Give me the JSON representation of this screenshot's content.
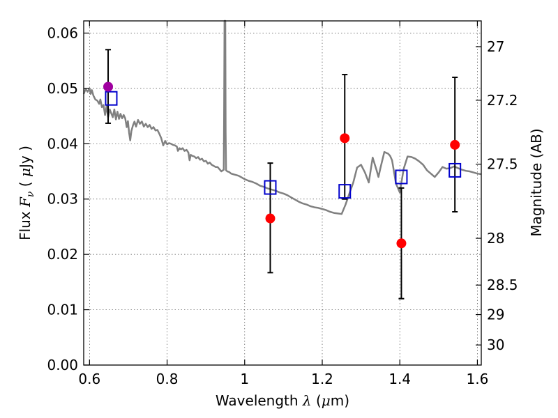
{
  "chart_data": {
    "type": "scatter",
    "xlabel_parts": [
      "Wavelength ",
      "λ",
      " (",
      "μ",
      "m)"
    ],
    "ylabel_parts": [
      "Flux ",
      "F",
      "ν",
      " ( ",
      "μ",
      "Jy )"
    ],
    "y2label": "Magnitude (AB)",
    "xlim": [
      0.585,
      1.61
    ],
    "ylim": [
      0.0,
      0.0622
    ],
    "grid": true,
    "x_ticks": [
      {
        "value": 0.6,
        "label": "0.6"
      },
      {
        "value": 0.8,
        "label": "0.8"
      },
      {
        "value": 1.0,
        "label": "1"
      },
      {
        "value": 1.2,
        "label": "1.2"
      },
      {
        "value": 1.4,
        "label": "1.4"
      },
      {
        "value": 1.6,
        "label": "1.6"
      }
    ],
    "y_ticks": [
      {
        "value": 0.0,
        "label": "0.00"
      },
      {
        "value": 0.01,
        "label": "0.01"
      },
      {
        "value": 0.02,
        "label": "0.02"
      },
      {
        "value": 0.03,
        "label": "0.03"
      },
      {
        "value": 0.04,
        "label": "0.04"
      },
      {
        "value": 0.05,
        "label": "0.05"
      },
      {
        "value": 0.06,
        "label": "0.06"
      }
    ],
    "y2_ticks": [
      {
        "magnitude": 27,
        "label": "27"
      },
      {
        "magnitude": 27.2,
        "label": "27.2"
      },
      {
        "magnitude": 27.5,
        "label": "27.5"
      },
      {
        "magnitude": 28,
        "label": "28"
      },
      {
        "magnitude": 28.5,
        "label": "28.5"
      },
      {
        "magnitude": 29,
        "label": "29"
      },
      {
        "magnitude": 30,
        "label": "30"
      }
    ],
    "colors": {
      "spectrum": "#808080",
      "observed": "#ff0000",
      "observed_first": "#a000a0",
      "model_box": "#0000cc",
      "errorbar": "#000000"
    },
    "series": [
      {
        "kind": "line",
        "points": [
          [
            0.585,
            0.049
          ],
          [
            0.59,
            0.0499
          ],
          [
            0.595,
            0.0494
          ],
          [
            0.6,
            0.05
          ],
          [
            0.603,
            0.049
          ],
          [
            0.606,
            0.0497
          ],
          [
            0.61,
            0.0487
          ],
          [
            0.615,
            0.048
          ],
          [
            0.62,
            0.0478
          ],
          [
            0.625,
            0.0472
          ],
          [
            0.628,
            0.048
          ],
          [
            0.632,
            0.0466
          ],
          [
            0.636,
            0.047
          ],
          [
            0.64,
            0.0452
          ],
          [
            0.644,
            0.0468
          ],
          [
            0.648,
            0.0448
          ],
          [
            0.652,
            0.0462
          ],
          [
            0.656,
            0.0455
          ],
          [
            0.66,
            0.0448
          ],
          [
            0.664,
            0.0462
          ],
          [
            0.668,
            0.0444
          ],
          [
            0.672,
            0.0458
          ],
          [
            0.676,
            0.0445
          ],
          [
            0.68,
            0.0454
          ],
          [
            0.684,
            0.0446
          ],
          [
            0.688,
            0.0452
          ],
          [
            0.692,
            0.0446
          ],
          [
            0.696,
            0.043
          ],
          [
            0.699,
            0.0441
          ],
          [
            0.702,
            0.042
          ],
          [
            0.705,
            0.0406
          ],
          [
            0.708,
            0.0423
          ],
          [
            0.712,
            0.0433
          ],
          [
            0.716,
            0.044
          ],
          [
            0.72,
            0.0431
          ],
          [
            0.725,
            0.0443
          ],
          [
            0.73,
            0.0436
          ],
          [
            0.735,
            0.044
          ],
          [
            0.74,
            0.0431
          ],
          [
            0.745,
            0.0436
          ],
          [
            0.75,
            0.043
          ],
          [
            0.755,
            0.0434
          ],
          [
            0.76,
            0.0427
          ],
          [
            0.765,
            0.043
          ],
          [
            0.77,
            0.0424
          ],
          [
            0.775,
            0.0425
          ],
          [
            0.78,
            0.0418
          ],
          [
            0.785,
            0.041
          ],
          [
            0.79,
            0.0397
          ],
          [
            0.795,
            0.0405
          ],
          [
            0.8,
            0.0399
          ],
          [
            0.805,
            0.0401
          ],
          [
            0.81,
            0.04
          ],
          [
            0.815,
            0.0398
          ],
          [
            0.82,
            0.0397
          ],
          [
            0.825,
            0.0395
          ],
          [
            0.828,
            0.0387
          ],
          [
            0.832,
            0.0392
          ],
          [
            0.836,
            0.039
          ],
          [
            0.84,
            0.0392
          ],
          [
            0.845,
            0.0387
          ],
          [
            0.85,
            0.0389
          ],
          [
            0.855,
            0.0384
          ],
          [
            0.858,
            0.037
          ],
          [
            0.861,
            0.038
          ],
          [
            0.865,
            0.0378
          ],
          [
            0.87,
            0.0377
          ],
          [
            0.875,
            0.0374
          ],
          [
            0.88,
            0.0376
          ],
          [
            0.885,
            0.0371
          ],
          [
            0.89,
            0.0373
          ],
          [
            0.895,
            0.0368
          ],
          [
            0.9,
            0.0369
          ],
          [
            0.905,
            0.0364
          ],
          [
            0.91,
            0.0366
          ],
          [
            0.915,
            0.0362
          ],
          [
            0.92,
            0.036
          ],
          [
            0.925,
            0.0358
          ],
          [
            0.93,
            0.0358
          ],
          [
            0.935,
            0.0354
          ],
          [
            0.94,
            0.035
          ],
          [
            0.944,
            0.0352
          ],
          [
            0.946,
            0.0353
          ],
          [
            0.947,
            0.045
          ],
          [
            0.948,
            0.0622
          ],
          [
            0.95,
            0.0622
          ],
          [
            0.951,
            0.042
          ],
          [
            0.952,
            0.0352
          ],
          [
            0.955,
            0.035
          ],
          [
            0.96,
            0.0349
          ],
          [
            0.965,
            0.0346
          ],
          [
            0.97,
            0.0345
          ],
          [
            0.975,
            0.0344
          ],
          [
            0.98,
            0.0343
          ],
          [
            0.985,
            0.0342
          ],
          [
            0.99,
            0.034
          ],
          [
            0.995,
            0.0338
          ],
          [
            1.0,
            0.0336
          ],
          [
            1.01,
            0.0333
          ],
          [
            1.02,
            0.0331
          ],
          [
            1.03,
            0.0328
          ],
          [
            1.04,
            0.0324
          ],
          [
            1.05,
            0.0322
          ],
          [
            1.06,
            0.0319
          ],
          [
            1.07,
            0.0317
          ],
          [
            1.08,
            0.0315
          ],
          [
            1.09,
            0.0312
          ],
          [
            1.1,
            0.031
          ],
          [
            1.11,
            0.0307
          ],
          [
            1.12,
            0.0303
          ],
          [
            1.13,
            0.0299
          ],
          [
            1.14,
            0.0295
          ],
          [
            1.15,
            0.0292
          ],
          [
            1.16,
            0.029
          ],
          [
            1.17,
            0.0287
          ],
          [
            1.18,
            0.0285
          ],
          [
            1.19,
            0.0284
          ],
          [
            1.2,
            0.0282
          ],
          [
            1.21,
            0.028
          ],
          [
            1.22,
            0.0277
          ],
          [
            1.23,
            0.0275
          ],
          [
            1.24,
            0.0274
          ],
          [
            1.25,
            0.0273
          ],
          [
            1.26,
            0.029
          ],
          [
            1.27,
            0.031
          ],
          [
            1.28,
            0.033
          ],
          [
            1.29,
            0.0357
          ],
          [
            1.3,
            0.0362
          ],
          [
            1.31,
            0.0348
          ],
          [
            1.32,
            0.033
          ],
          [
            1.33,
            0.0375
          ],
          [
            1.34,
            0.0352
          ],
          [
            1.345,
            0.034
          ],
          [
            1.35,
            0.0356
          ],
          [
            1.36,
            0.0385
          ],
          [
            1.37,
            0.0382
          ],
          [
            1.375,
            0.0378
          ],
          [
            1.38,
            0.037
          ],
          [
            1.39,
            0.0328
          ],
          [
            1.4,
            0.0312
          ],
          [
            1.41,
            0.0355
          ],
          [
            1.42,
            0.0377
          ],
          [
            1.43,
            0.0376
          ],
          [
            1.44,
            0.0373
          ],
          [
            1.45,
            0.0368
          ],
          [
            1.46,
            0.0362
          ],
          [
            1.47,
            0.0352
          ],
          [
            1.48,
            0.0346
          ],
          [
            1.49,
            0.034
          ],
          [
            1.5,
            0.0348
          ],
          [
            1.51,
            0.0358
          ],
          [
            1.52,
            0.0355
          ],
          [
            1.53,
            0.0356
          ],
          [
            1.54,
            0.0359
          ],
          [
            1.55,
            0.0356
          ],
          [
            1.56,
            0.0353
          ],
          [
            1.57,
            0.0351
          ],
          [
            1.58,
            0.035
          ],
          [
            1.59,
            0.0348
          ],
          [
            1.6,
            0.0346
          ],
          [
            1.61,
            0.0345
          ]
        ]
      },
      {
        "kind": "points",
        "marker": "circle",
        "x": [
          0.648,
          1.066,
          1.258,
          1.404,
          1.542
        ],
        "y": [
          0.0503,
          0.0265,
          0.041,
          0.022,
          0.0398
        ],
        "yerr_low": [
          0.0437,
          0.0167,
          0.03,
          0.012,
          0.0277
        ],
        "yerr_high": [
          0.057,
          0.0365,
          0.0525,
          0.032,
          0.052
        ]
      },
      {
        "kind": "points",
        "marker": "open-square",
        "x": [
          0.656,
          1.066,
          1.258,
          1.404,
          1.542
        ],
        "y": [
          0.0482,
          0.0321,
          0.0314,
          0.034,
          0.0352
        ]
      }
    ]
  }
}
